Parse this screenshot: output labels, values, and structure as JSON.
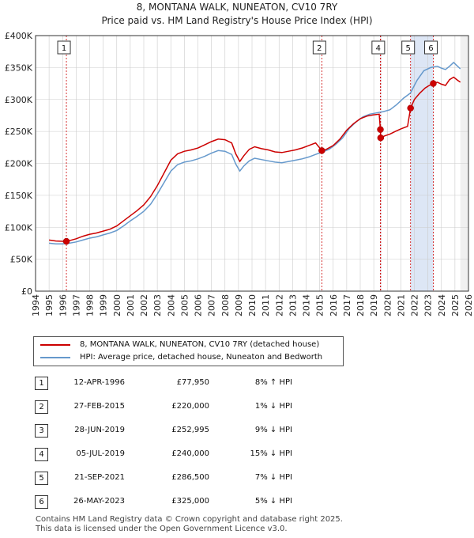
{
  "title": "8, MONTANA WALK, NUNEATON, CV10 7RY",
  "subtitle": "Price paid vs. HM Land Registry's House Price Index (HPI)",
  "colors": {
    "property": "#cc0000",
    "hpi": "#6699cc",
    "shade": "#dde6f5",
    "grid": "#cccccc"
  },
  "chart_data": {
    "type": "line",
    "xlim": [
      1994,
      2026
    ],
    "ylim": [
      0,
      400000
    ],
    "yticks": [
      {
        "value": 0,
        "label": "£0"
      },
      {
        "value": 50000,
        "label": "£50K"
      },
      {
        "value": 100000,
        "label": "£100K"
      },
      {
        "value": 150000,
        "label": "£150K"
      },
      {
        "value": 200000,
        "label": "£200K"
      },
      {
        "value": 250000,
        "label": "£250K"
      },
      {
        "value": 300000,
        "label": "£300K"
      },
      {
        "value": 350000,
        "label": "£350K"
      },
      {
        "value": 400000,
        "label": "£400K"
      }
    ],
    "xticks": [
      "1994",
      "1995",
      "1996",
      "1997",
      "1998",
      "1999",
      "2000",
      "2001",
      "2002",
      "2003",
      "2004",
      "2005",
      "2006",
      "2007",
      "2008",
      "2009",
      "2010",
      "2011",
      "2012",
      "2013",
      "2014",
      "2015",
      "2016",
      "2017",
      "2018",
      "2019",
      "2020",
      "2021",
      "2022",
      "2023",
      "2024",
      "2025",
      "2026"
    ],
    "series": [
      {
        "name": "8, MONTANA WALK, NUNEATON, CV10 7RY (detached house)",
        "points": [
          [
            1995.0,
            80000
          ],
          [
            1995.5,
            78500
          ],
          [
            1996.0,
            78000
          ],
          [
            1996.28,
            77950
          ],
          [
            1996.5,
            79000
          ],
          [
            1997.0,
            82000
          ],
          [
            1997.5,
            86000
          ],
          [
            1998.0,
            89000
          ],
          [
            1998.5,
            91000
          ],
          [
            1999.0,
            94000
          ],
          [
            1999.5,
            97000
          ],
          [
            2000.0,
            102000
          ],
          [
            2000.5,
            110000
          ],
          [
            2001.0,
            118000
          ],
          [
            2001.5,
            126000
          ],
          [
            2002.0,
            135000
          ],
          [
            2002.5,
            148000
          ],
          [
            2003.0,
            165000
          ],
          [
            2003.5,
            185000
          ],
          [
            2004.0,
            205000
          ],
          [
            2004.5,
            215000
          ],
          [
            2005.0,
            219000
          ],
          [
            2005.5,
            221000
          ],
          [
            2006.0,
            224000
          ],
          [
            2006.5,
            229000
          ],
          [
            2007.0,
            234000
          ],
          [
            2007.5,
            238000
          ],
          [
            2008.0,
            237000
          ],
          [
            2008.5,
            232000
          ],
          [
            2008.8,
            215000
          ],
          [
            2009.1,
            203000
          ],
          [
            2009.4,
            212000
          ],
          [
            2009.8,
            222000
          ],
          [
            2010.2,
            226000
          ],
          [
            2010.7,
            223000
          ],
          [
            2011.2,
            221000
          ],
          [
            2011.7,
            218000
          ],
          [
            2012.2,
            217000
          ],
          [
            2012.7,
            219000
          ],
          [
            2013.2,
            221000
          ],
          [
            2013.7,
            224000
          ],
          [
            2014.2,
            228000
          ],
          [
            2014.7,
            232000
          ],
          [
            2015.16,
            220000
          ],
          [
            2015.5,
            222000
          ],
          [
            2016.0,
            228000
          ],
          [
            2016.5,
            238000
          ],
          [
            2017.0,
            252000
          ],
          [
            2017.5,
            262000
          ],
          [
            2018.0,
            270000
          ],
          [
            2018.5,
            274000
          ],
          [
            2019.0,
            276000
          ],
          [
            2019.4,
            277000
          ],
          [
            2019.49,
            252995
          ],
          [
            2019.51,
            240000
          ],
          [
            2019.8,
            243000
          ],
          [
            2020.2,
            246000
          ],
          [
            2020.6,
            250000
          ],
          [
            2021.0,
            254000
          ],
          [
            2021.5,
            258000
          ],
          [
            2021.72,
            286500
          ],
          [
            2022.0,
            300000
          ],
          [
            2022.4,
            310000
          ],
          [
            2022.8,
            318000
          ],
          [
            2023.1,
            322000
          ],
          [
            2023.4,
            325000
          ],
          [
            2023.7,
            327000
          ],
          [
            2024.0,
            324000
          ],
          [
            2024.3,
            322000
          ],
          [
            2024.6,
            331000
          ],
          [
            2024.9,
            335000
          ],
          [
            2025.2,
            330000
          ],
          [
            2025.4,
            327000
          ]
        ]
      },
      {
        "name": "HPI: Average price, detached house, Nuneaton and Bedworth",
        "points": [
          [
            1995.0,
            75000
          ],
          [
            1995.5,
            74000
          ],
          [
            1996.0,
            74000
          ],
          [
            1996.5,
            75000
          ],
          [
            1997.0,
            77000
          ],
          [
            1997.5,
            80000
          ],
          [
            1998.0,
            83000
          ],
          [
            1998.5,
            85000
          ],
          [
            1999.0,
            88000
          ],
          [
            1999.5,
            91000
          ],
          [
            2000.0,
            95000
          ],
          [
            2000.5,
            102000
          ],
          [
            2001.0,
            110000
          ],
          [
            2001.5,
            117000
          ],
          [
            2002.0,
            125000
          ],
          [
            2002.5,
            136000
          ],
          [
            2003.0,
            152000
          ],
          [
            2003.5,
            170000
          ],
          [
            2004.0,
            188000
          ],
          [
            2004.5,
            198000
          ],
          [
            2005.0,
            202000
          ],
          [
            2005.5,
            204000
          ],
          [
            2006.0,
            207000
          ],
          [
            2006.5,
            211000
          ],
          [
            2007.0,
            216000
          ],
          [
            2007.5,
            220000
          ],
          [
            2008.0,
            219000
          ],
          [
            2008.5,
            214000
          ],
          [
            2008.8,
            199000
          ],
          [
            2009.1,
            188000
          ],
          [
            2009.4,
            196000
          ],
          [
            2009.8,
            204000
          ],
          [
            2010.2,
            208000
          ],
          [
            2010.7,
            206000
          ],
          [
            2011.2,
            204000
          ],
          [
            2011.7,
            202000
          ],
          [
            2012.2,
            201000
          ],
          [
            2012.7,
            203000
          ],
          [
            2013.2,
            205000
          ],
          [
            2013.7,
            207000
          ],
          [
            2014.2,
            210000
          ],
          [
            2014.7,
            214000
          ],
          [
            2015.2,
            218000
          ],
          [
            2015.7,
            222000
          ],
          [
            2016.2,
            230000
          ],
          [
            2016.7,
            240000
          ],
          [
            2017.2,
            255000
          ],
          [
            2017.7,
            265000
          ],
          [
            2018.2,
            273000
          ],
          [
            2018.7,
            277000
          ],
          [
            2019.2,
            279000
          ],
          [
            2019.7,
            281000
          ],
          [
            2020.2,
            284000
          ],
          [
            2020.7,
            292000
          ],
          [
            2021.2,
            302000
          ],
          [
            2021.7,
            310000
          ],
          [
            2022.2,
            330000
          ],
          [
            2022.7,
            345000
          ],
          [
            2023.2,
            350000
          ],
          [
            2023.7,
            352000
          ],
          [
            2024.0,
            349000
          ],
          [
            2024.3,
            347000
          ],
          [
            2024.6,
            352000
          ],
          [
            2024.9,
            358000
          ],
          [
            2025.2,
            352000
          ],
          [
            2025.4,
            348000
          ]
        ]
      }
    ],
    "markers": [
      {
        "id": "1",
        "x": 1996.28,
        "value": 77950
      },
      {
        "id": "2",
        "x": 2015.16,
        "value": 220000
      },
      {
        "id": "3",
        "x": 2019.49,
        "value": 252995
      },
      {
        "id": "4",
        "x": 2019.51,
        "value": 240000
      },
      {
        "id": "5",
        "x": 2021.72,
        "value": 286500
      },
      {
        "id": "6",
        "x": 2023.4,
        "value": 325000
      }
    ],
    "annotation_labels": [
      "1",
      "2",
      "4",
      "5",
      "6"
    ],
    "shaded_ranges": [
      [
        2019.49,
        2019.51
      ],
      [
        2021.72,
        2023.4
      ]
    ]
  },
  "legend": {
    "property_label": "8, MONTANA WALK, NUNEATON, CV10 7RY (detached house)",
    "hpi_label": "HPI: Average price, detached house, Nuneaton and Bedworth"
  },
  "table": [
    {
      "num": "1",
      "date": "12-APR-1996",
      "price": "£77,950",
      "hpi": "8% ↑ HPI"
    },
    {
      "num": "2",
      "date": "27-FEB-2015",
      "price": "£220,000",
      "hpi": "1% ↓ HPI"
    },
    {
      "num": "3",
      "date": "28-JUN-2019",
      "price": "£252,995",
      "hpi": "9% ↓ HPI"
    },
    {
      "num": "4",
      "date": "05-JUL-2019",
      "price": "£240,000",
      "hpi": "15% ↓ HPI"
    },
    {
      "num": "5",
      "date": "21-SEP-2021",
      "price": "£286,500",
      "hpi": "7% ↓ HPI"
    },
    {
      "num": "6",
      "date": "26-MAY-2023",
      "price": "£325,000",
      "hpi": "5% ↓ HPI"
    }
  ],
  "footer": {
    "line1": "Contains HM Land Registry data © Crown copyright and database right 2025.",
    "line2": "This data is licensed under the Open Government Licence v3.0."
  }
}
